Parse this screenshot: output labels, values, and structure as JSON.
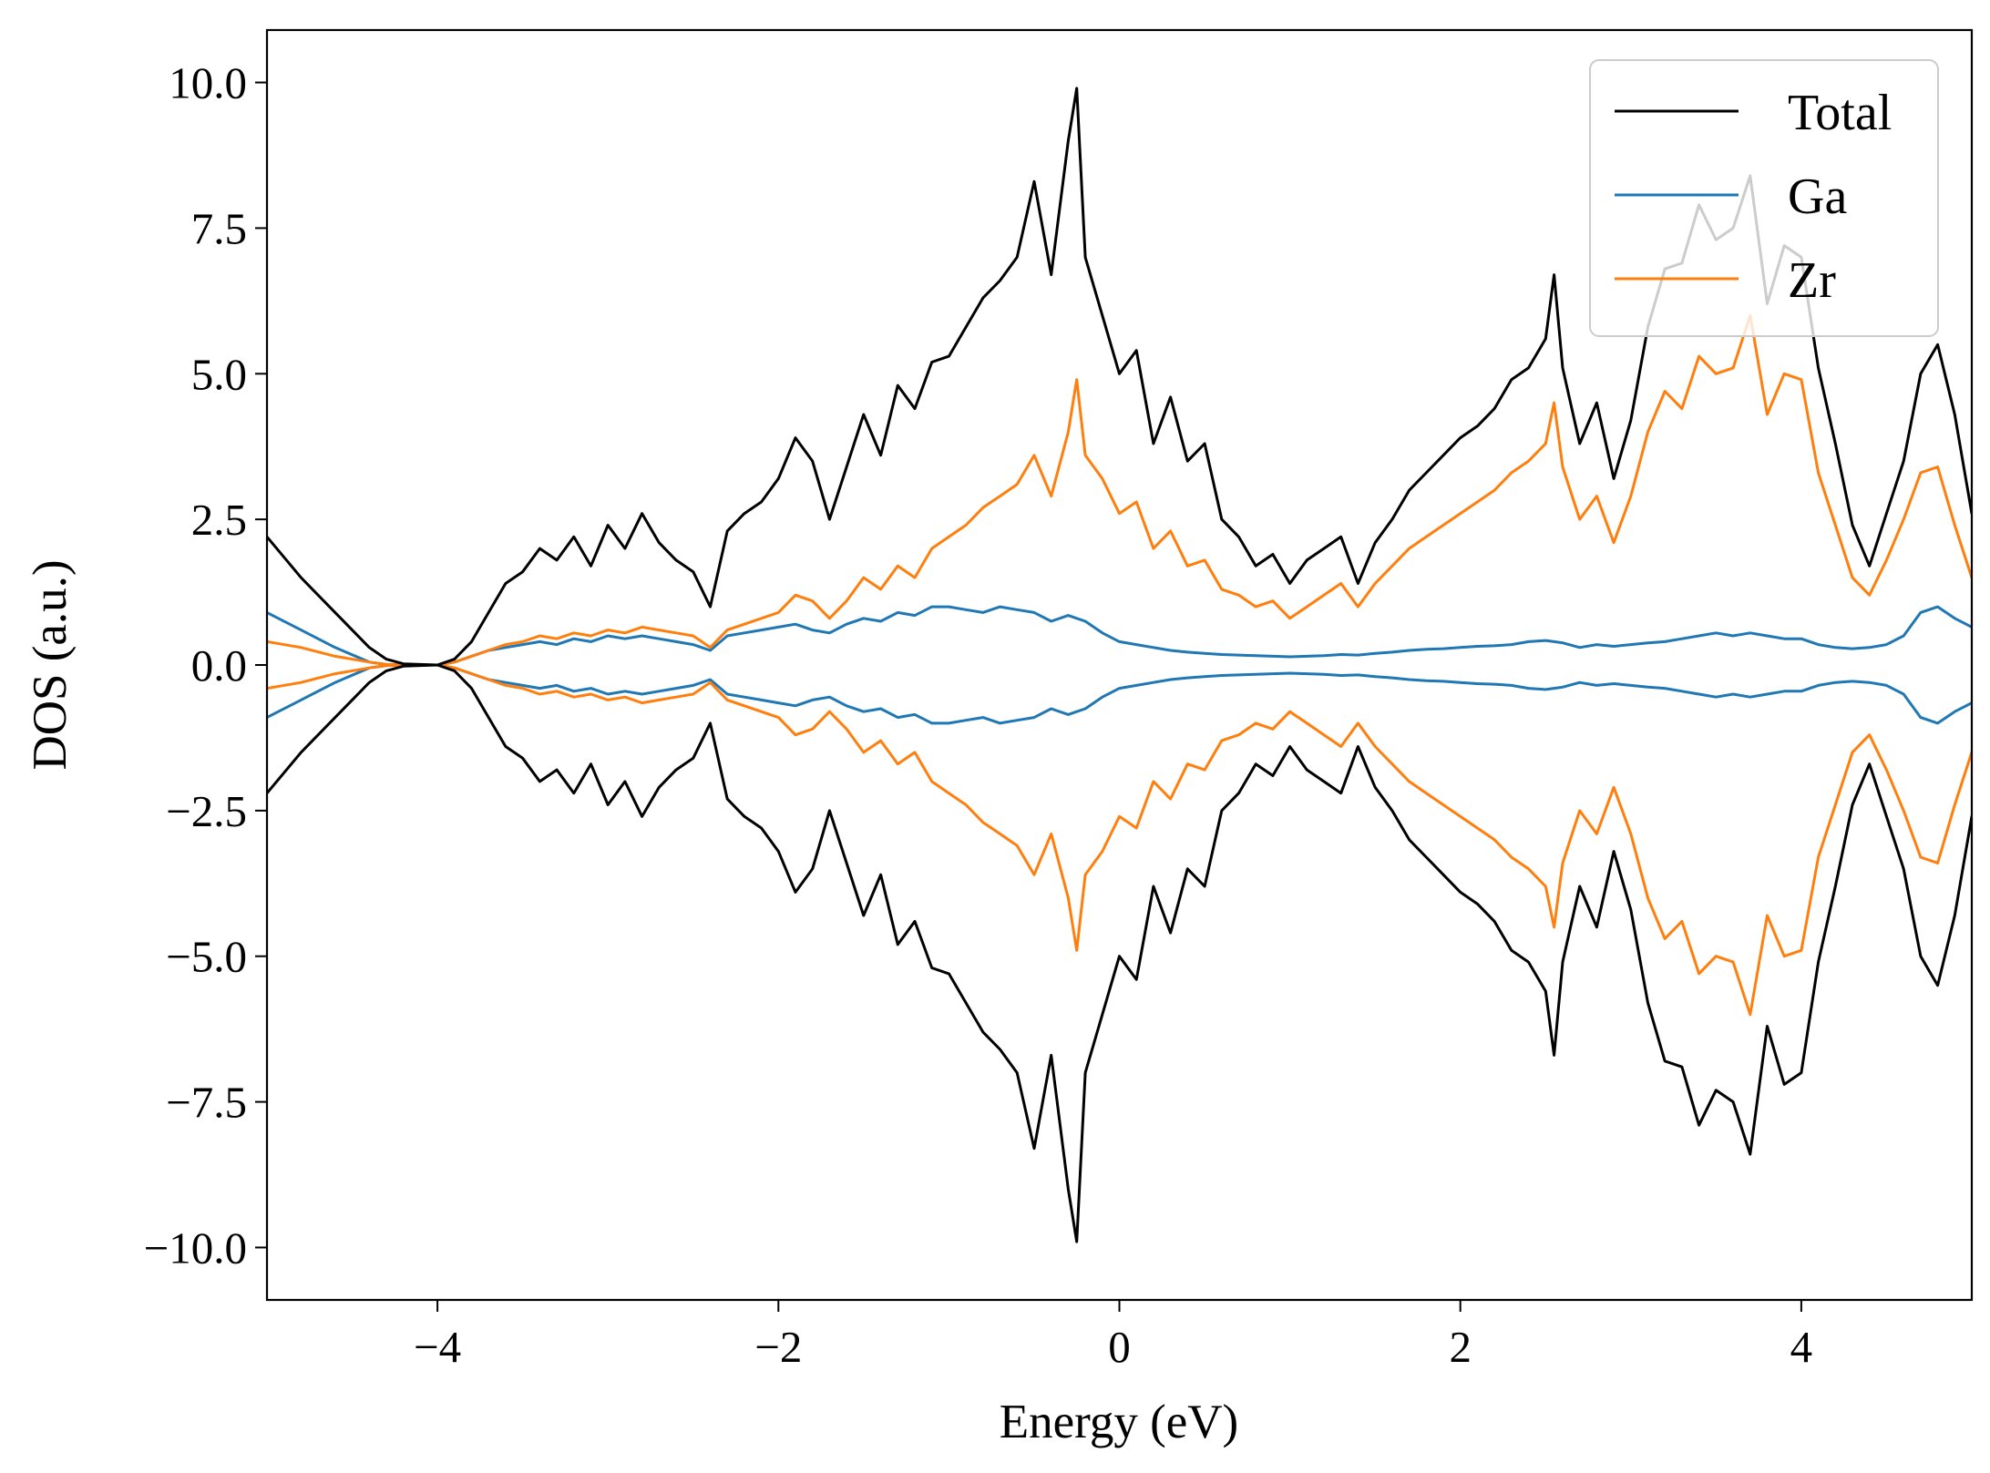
{
  "chart_data": {
    "type": "line",
    "title": "",
    "xlabel": "Energy (eV)",
    "ylabel": "DOS (a.u.)",
    "xlim": [
      -5,
      5
    ],
    "ylim": [
      -10.9,
      10.9
    ],
    "xticks": [
      -4,
      -2,
      0,
      2,
      4
    ],
    "xtick_labels": [
      "−4",
      "−2",
      "0",
      "2",
      "4"
    ],
    "yticks": [
      -10,
      -7.5,
      -5,
      -2.5,
      0,
      2.5,
      5,
      7.5,
      10
    ],
    "ytick_labels": [
      "−10.0",
      "−7.5",
      "−5.0",
      "−2.5",
      "0.0",
      "2.5",
      "5.0",
      "7.5",
      "10.0"
    ],
    "grid": false,
    "legend_position": "top-right",
    "mirrored_spin_down": true,
    "x": [
      -5.0,
      -4.8,
      -4.6,
      -4.4,
      -4.3,
      -4.2,
      -4.0,
      -3.9,
      -3.8,
      -3.7,
      -3.6,
      -3.5,
      -3.4,
      -3.3,
      -3.2,
      -3.1,
      -3.0,
      -2.9,
      -2.8,
      -2.7,
      -2.6,
      -2.5,
      -2.4,
      -2.3,
      -2.2,
      -2.1,
      -2.0,
      -1.9,
      -1.8,
      -1.7,
      -1.6,
      -1.5,
      -1.4,
      -1.3,
      -1.2,
      -1.1,
      -1.0,
      -0.9,
      -0.8,
      -0.7,
      -0.6,
      -0.5,
      -0.4,
      -0.3,
      -0.25,
      -0.2,
      -0.1,
      0.0,
      0.1,
      0.2,
      0.3,
      0.4,
      0.5,
      0.6,
      0.7,
      0.8,
      0.9,
      1.0,
      1.1,
      1.2,
      1.3,
      1.4,
      1.5,
      1.6,
      1.7,
      1.8,
      1.9,
      2.0,
      2.1,
      2.2,
      2.3,
      2.4,
      2.5,
      2.55,
      2.6,
      2.7,
      2.8,
      2.9,
      3.0,
      3.1,
      3.2,
      3.3,
      3.4,
      3.5,
      3.6,
      3.7,
      3.8,
      3.9,
      4.0,
      4.1,
      4.2,
      4.3,
      4.4,
      4.5,
      4.6,
      4.7,
      4.8,
      4.9,
      5.0
    ],
    "series": [
      {
        "name": "Total",
        "color": "#000000",
        "values": [
          2.2,
          1.5,
          0.9,
          0.3,
          0.1,
          0.02,
          0.0,
          0.1,
          0.4,
          0.9,
          1.4,
          1.6,
          2.0,
          1.8,
          2.2,
          1.7,
          2.4,
          2.0,
          2.6,
          2.1,
          1.8,
          1.6,
          1.0,
          2.3,
          2.6,
          2.8,
          3.2,
          3.9,
          3.5,
          2.5,
          3.4,
          4.3,
          3.6,
          4.8,
          4.4,
          5.2,
          5.3,
          5.8,
          6.3,
          6.6,
          7.0,
          8.3,
          6.7,
          9.0,
          9.9,
          7.0,
          6.0,
          5.0,
          5.4,
          3.8,
          4.6,
          3.5,
          3.8,
          2.5,
          2.2,
          1.7,
          1.9,
          1.4,
          1.8,
          2.0,
          2.2,
          1.4,
          2.1,
          2.5,
          3.0,
          3.3,
          3.6,
          3.9,
          4.1,
          4.4,
          4.9,
          5.1,
          5.6,
          6.7,
          5.1,
          3.8,
          4.5,
          3.2,
          4.2,
          5.8,
          6.8,
          6.9,
          7.9,
          7.3,
          7.5,
          8.4,
          6.2,
          7.2,
          7.0,
          5.1,
          3.8,
          2.4,
          1.7,
          2.6,
          3.5,
          5.0,
          5.5,
          4.3,
          2.6
        ]
      },
      {
        "name": "Ga",
        "color": "#1f77b4",
        "values": [
          0.9,
          0.6,
          0.3,
          0.05,
          0.01,
          0.0,
          0.0,
          0.05,
          0.15,
          0.25,
          0.3,
          0.35,
          0.4,
          0.35,
          0.45,
          0.4,
          0.5,
          0.45,
          0.5,
          0.45,
          0.4,
          0.35,
          0.25,
          0.5,
          0.55,
          0.6,
          0.65,
          0.7,
          0.6,
          0.55,
          0.7,
          0.8,
          0.75,
          0.9,
          0.85,
          1.0,
          1.0,
          0.95,
          0.9,
          1.0,
          0.95,
          0.9,
          0.75,
          0.85,
          0.8,
          0.75,
          0.55,
          0.4,
          0.35,
          0.3,
          0.25,
          0.22,
          0.2,
          0.18,
          0.17,
          0.16,
          0.15,
          0.14,
          0.15,
          0.16,
          0.18,
          0.17,
          0.2,
          0.22,
          0.25,
          0.27,
          0.28,
          0.3,
          0.32,
          0.33,
          0.35,
          0.4,
          0.42,
          0.4,
          0.38,
          0.3,
          0.35,
          0.32,
          0.35,
          0.38,
          0.4,
          0.45,
          0.5,
          0.55,
          0.5,
          0.55,
          0.5,
          0.45,
          0.45,
          0.35,
          0.3,
          0.28,
          0.3,
          0.35,
          0.5,
          0.9,
          1.0,
          0.8,
          0.65
        ]
      },
      {
        "name": "Zr",
        "color": "#ff7f0e",
        "values": [
          0.4,
          0.3,
          0.15,
          0.05,
          0.01,
          0.0,
          0.0,
          0.05,
          0.15,
          0.25,
          0.35,
          0.4,
          0.5,
          0.45,
          0.55,
          0.5,
          0.6,
          0.55,
          0.65,
          0.6,
          0.55,
          0.5,
          0.3,
          0.6,
          0.7,
          0.8,
          0.9,
          1.2,
          1.1,
          0.8,
          1.1,
          1.5,
          1.3,
          1.7,
          1.5,
          2.0,
          2.2,
          2.4,
          2.7,
          2.9,
          3.1,
          3.6,
          2.9,
          4.0,
          4.9,
          3.6,
          3.2,
          2.6,
          2.8,
          2.0,
          2.3,
          1.7,
          1.8,
          1.3,
          1.2,
          1.0,
          1.1,
          0.8,
          1.0,
          1.2,
          1.4,
          1.0,
          1.4,
          1.7,
          2.0,
          2.2,
          2.4,
          2.6,
          2.8,
          3.0,
          3.3,
          3.5,
          3.8,
          4.5,
          3.4,
          2.5,
          2.9,
          2.1,
          2.9,
          4.0,
          4.7,
          4.4,
          5.3,
          5.0,
          5.1,
          6.0,
          4.3,
          5.0,
          4.9,
          3.3,
          2.4,
          1.5,
          1.2,
          1.8,
          2.5,
          3.3,
          3.4,
          2.4,
          1.5
        ]
      }
    ]
  }
}
